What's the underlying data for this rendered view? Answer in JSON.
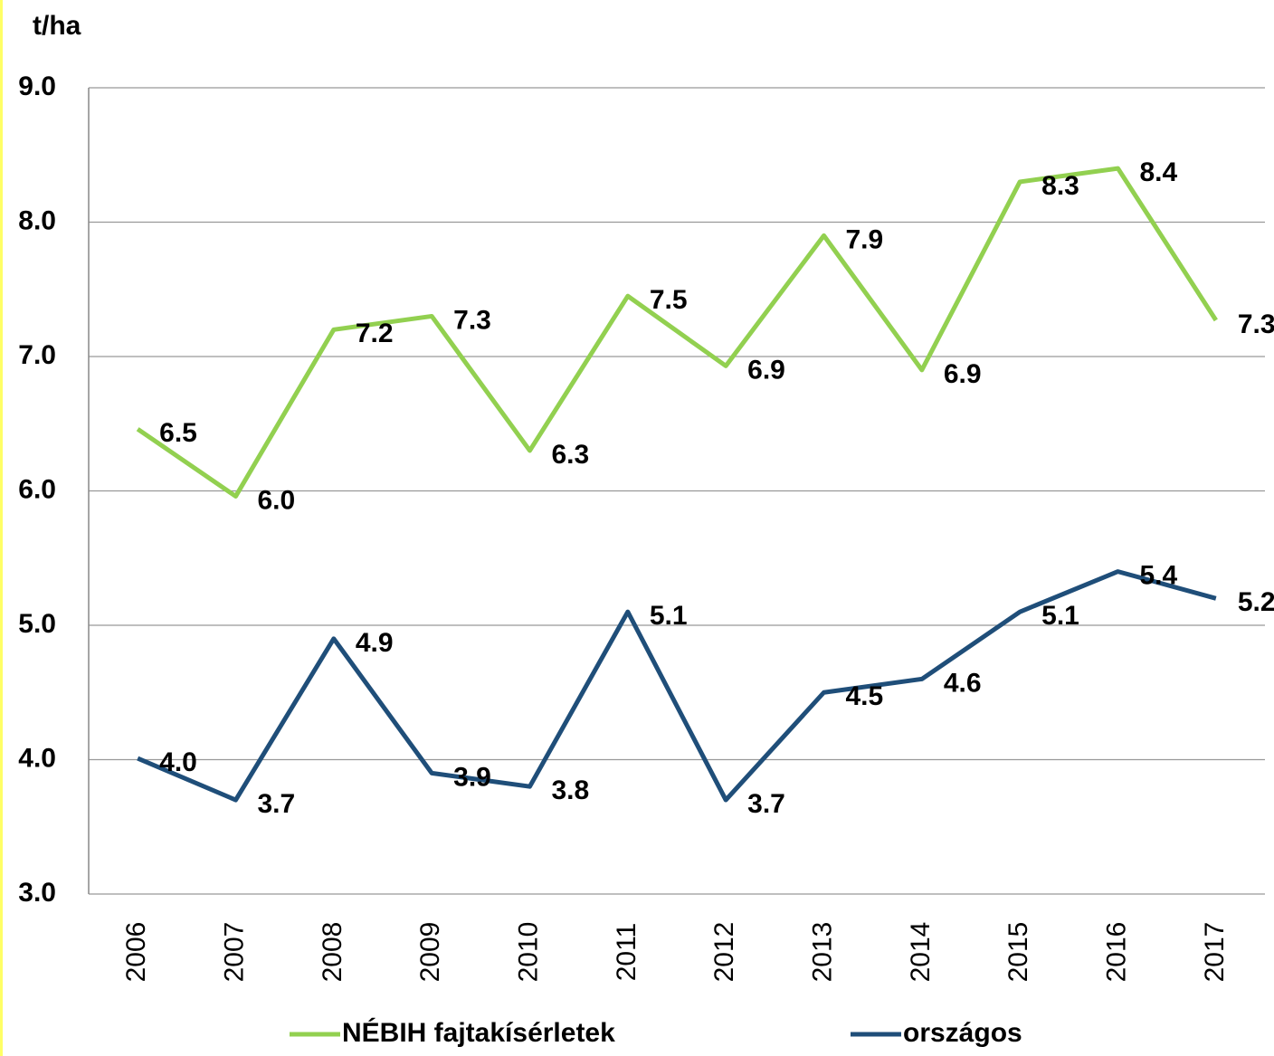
{
  "chart_data": {
    "type": "line",
    "y_label": "t/ha",
    "categories": [
      "2006",
      "2007",
      "2008",
      "2009",
      "2010",
      "2011",
      "2012",
      "2013",
      "2014",
      "2015",
      "2016",
      "2017"
    ],
    "series": [
      {
        "name": "NÉBIH fajtakísérletek",
        "color": "#92d050",
        "values": [
          6.46,
          5.96,
          7.2,
          7.3,
          6.3,
          7.45,
          6.93,
          7.9,
          6.9,
          8.3,
          8.4,
          7.27
        ],
        "value_labels": [
          "6.5",
          "6.0",
          "7.2",
          "7.3",
          "6.3",
          "7.5",
          "6.9",
          "7.9",
          "6.9",
          "8.3",
          "8.4",
          "7.3"
        ]
      },
      {
        "name": "országos",
        "color": "#1f4e79",
        "values": [
          4.01,
          3.7,
          4.9,
          3.9,
          3.8,
          5.1,
          3.7,
          4.5,
          4.6,
          5.1,
          5.4,
          5.2
        ],
        "value_labels": [
          "4.0",
          "3.7",
          "4.9",
          "3.9",
          "3.8",
          "5.1",
          "3.7",
          "4.5",
          "4.6",
          "5.1",
          "5.4",
          "5.2"
        ]
      }
    ],
    "ylim": [
      3,
      9
    ],
    "yticks": [
      {
        "value": 3,
        "label": "3.0"
      },
      {
        "value": 4,
        "label": "4.0"
      },
      {
        "value": 5,
        "label": "5.0"
      },
      {
        "value": 6,
        "label": "6.0"
      },
      {
        "value": 7,
        "label": "7.0"
      },
      {
        "value": 8,
        "label": "8.0"
      },
      {
        "value": 9,
        "label": "9.0"
      }
    ],
    "grid": true,
    "legend": "bottom"
  }
}
